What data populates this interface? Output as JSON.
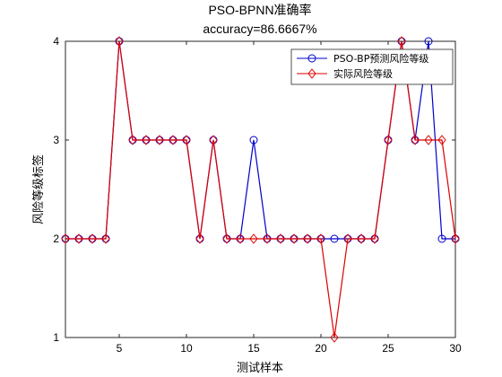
{
  "chart_data": {
    "type": "line",
    "title": "PSO-BPNN准确率",
    "subtitle": "accuracy=86.6667%",
    "xlabel": "测试样本",
    "ylabel": "风险等级标签",
    "xlim": [
      1,
      30
    ],
    "ylim": [
      1,
      4
    ],
    "xticks": [
      5,
      10,
      15,
      20,
      25,
      30
    ],
    "yticks": [
      1,
      2,
      3,
      4
    ],
    "grid": false,
    "legend_position": "top-right",
    "x": [
      1,
      2,
      3,
      4,
      5,
      6,
      7,
      8,
      9,
      10,
      11,
      12,
      13,
      14,
      15,
      16,
      17,
      18,
      19,
      20,
      21,
      22,
      23,
      24,
      25,
      26,
      27,
      28,
      29,
      30
    ],
    "series": [
      {
        "name": "PSO-BP预测风险等级",
        "color": "#0000cc",
        "marker": "circle",
        "values": [
          2,
          2,
          2,
          2,
          4,
          3,
          3,
          3,
          3,
          3,
          2,
          3,
          2,
          2,
          3,
          2,
          2,
          2,
          2,
          2,
          2,
          2,
          2,
          2,
          3,
          4,
          3,
          4,
          2,
          2
        ]
      },
      {
        "name": "实际风险等级",
        "color": "#dd0000",
        "marker": "diamond",
        "values": [
          2,
          2,
          2,
          2,
          4,
          3,
          3,
          3,
          3,
          3,
          2,
          3,
          2,
          2,
          2,
          2,
          2,
          2,
          2,
          2,
          1,
          2,
          2,
          2,
          3,
          4,
          3,
          3,
          3,
          2
        ]
      }
    ]
  }
}
